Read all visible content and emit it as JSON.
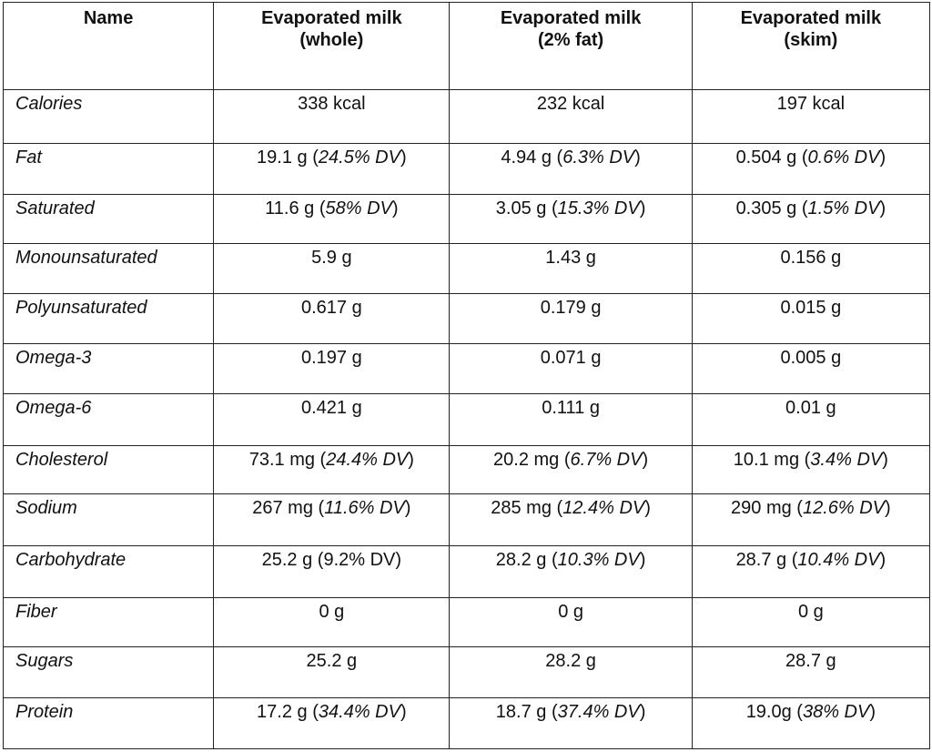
{
  "headers": {
    "name": "Name",
    "whole": [
      "Evaporated milk",
      "(whole)"
    ],
    "two_percent": [
      "Evaporated milk",
      "(2% fat)"
    ],
    "skim": [
      "Evaporated milk",
      "(skim)"
    ]
  },
  "rows": [
    {
      "name": "Calories",
      "h": 59,
      "cells": [
        {
          "main": "338 kcal"
        },
        {
          "main": "232 kcal"
        },
        {
          "main": "197 kcal"
        }
      ]
    },
    {
      "name": "Fat",
      "h": 56,
      "cells": [
        {
          "main": "19.1 g ",
          "dv": "24.5% DV",
          "it": true
        },
        {
          "main": "4.94 g ",
          "dv": "6.3% DV",
          "it": true
        },
        {
          "main": "0.504 g ",
          "dv": "0.6% DV",
          "it": true
        }
      ]
    },
    {
      "name": "Saturated",
      "h": 54,
      "cells": [
        {
          "main": "11.6 g ",
          "dv": "58% DV",
          "it": true
        },
        {
          "main": "3.05 g ",
          "dv": "15.3% DV",
          "it": true
        },
        {
          "main": "0.305 g ",
          "dv": "1.5% DV",
          "it": true
        }
      ]
    },
    {
      "name": "Monounsaturated",
      "h": 55,
      "cells": [
        {
          "main": "5.9 g"
        },
        {
          "main": "1.43 g"
        },
        {
          "main": "0.156 g"
        }
      ]
    },
    {
      "name": "Polyunsaturated",
      "h": 55,
      "cells": [
        {
          "main": "0.617 g"
        },
        {
          "main": "0.179 g"
        },
        {
          "main": "0.015 g"
        }
      ]
    },
    {
      "name": "Omega-3",
      "h": 55,
      "cells": [
        {
          "main": "0.197 g"
        },
        {
          "main": "0.071 g"
        },
        {
          "main": "0.005 g"
        }
      ]
    },
    {
      "name": "Omega-6",
      "h": 57,
      "cells": [
        {
          "main": "0.421 g"
        },
        {
          "main": "0.111 g"
        },
        {
          "main": "0.01 g"
        }
      ]
    },
    {
      "name": "Cholesterol",
      "h": 53,
      "cells": [
        {
          "main": "73.1 mg ",
          "dv": "24.4% DV",
          "it": true
        },
        {
          "main": "20.2 mg ",
          "dv": "6.7% DV",
          "it": true
        },
        {
          "main": "10.1 mg ",
          "dv": "3.4% DV",
          "it": true
        }
      ]
    },
    {
      "name": "Sodium",
      "h": 57,
      "cells": [
        {
          "main": "267 mg ",
          "dv": "11.6% DV",
          "it": true
        },
        {
          "main": "285 mg ",
          "dv": "12.4% DV",
          "it": true
        },
        {
          "main": "290 mg ",
          "dv": "12.6% DV",
          "it": true
        }
      ]
    },
    {
      "name": "Carbohydrate",
      "h": 57,
      "cells": [
        {
          "main": "25.2 g ",
          "dv": "9.2% DV",
          "it": false
        },
        {
          "main": "28.2 g ",
          "dv": "10.3% DV",
          "it": true
        },
        {
          "main": "28.7 g ",
          "dv": "10.4% DV",
          "it": true
        }
      ]
    },
    {
      "name": "Fiber",
      "h": 54,
      "cells": [
        {
          "main": "0 g"
        },
        {
          "main": "0 g"
        },
        {
          "main": "0 g"
        }
      ]
    },
    {
      "name": "Sugars",
      "h": 56,
      "cells": [
        {
          "main": "25.2 g"
        },
        {
          "main": "28.2 g"
        },
        {
          "main": "28.7 g"
        }
      ]
    },
    {
      "name": "Protein",
      "h": 56,
      "cells": [
        {
          "main": "17.2 g ",
          "dv": "34.4% DV",
          "it": true
        },
        {
          "main": "18.7 g ",
          "dv": "37.4% DV",
          "it": true
        },
        {
          "main": "19.0g ",
          "dv": "38% DV",
          "it": true
        }
      ]
    }
  ]
}
